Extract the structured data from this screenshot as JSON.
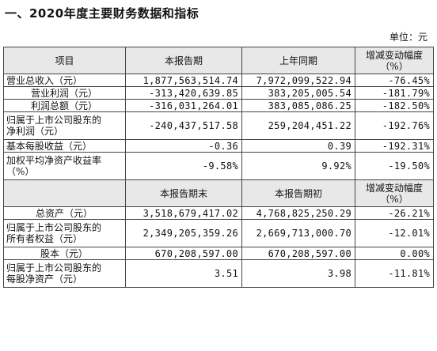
{
  "title": "一、2020年度主要财务数据和指标",
  "unit": "单位：元",
  "table1": {
    "headers": [
      "项目",
      "本报告期",
      "上年同期",
      "增减变动幅度",
      "（%）"
    ],
    "rows": [
      {
        "label": "营业总收入（元）",
        "label2": "",
        "v1": "1,877,563,514.74",
        "v2": "7,972,099,522.94",
        "v3": "-76.45%"
      },
      {
        "label": "营业利润（元）",
        "label2": "",
        "v1": "-313,420,639.85",
        "v2": "383,205,005.54",
        "v3": "-181.79%"
      },
      {
        "label": "利润总额（元）",
        "label2": "",
        "v1": "-316,031,264.01",
        "v2": "383,085,086.25",
        "v3": "-182.50%"
      },
      {
        "label": "归属于上市公司股东的",
        "label2": "净利润（元）",
        "v1": "-240,437,517.58",
        "v2": "259,204,451.22",
        "v3": "-192.76%"
      },
      {
        "label": "基本每股收益（元）",
        "label2": "",
        "v1": "-0.36",
        "v2": "0.39",
        "v3": "-192.31%"
      },
      {
        "label": "加权平均净资产收益率",
        "label2": "（%）",
        "v1": "-9.58%",
        "v2": "9.92%",
        "v3": "-19.50%"
      }
    ]
  },
  "table2": {
    "headers": [
      "",
      "本报告期末",
      "本报告期初",
      "增减变动幅度",
      "（%）"
    ],
    "rows": [
      {
        "label": "总资产（元）",
        "label2": "",
        "v1": "3,518,679,417.02",
        "v2": "4,768,825,250.29",
        "v3": "-26.21%"
      },
      {
        "label": "归属于上市公司股东的",
        "label2": "所有者权益（元）",
        "v1": "2,349,205,359.26",
        "v2": "2,669,713,000.70",
        "v3": "-12.01%"
      },
      {
        "label": "股本（元）",
        "label2": "",
        "v1": "670,208,597.00",
        "v2": "670,208,597.00",
        "v3": "0.00%"
      },
      {
        "label": "归属于上市公司股东的",
        "label2": "每股净资产（元）",
        "v1": "3.51",
        "v2": "3.98",
        "v3": "-11.81%"
      }
    ]
  }
}
